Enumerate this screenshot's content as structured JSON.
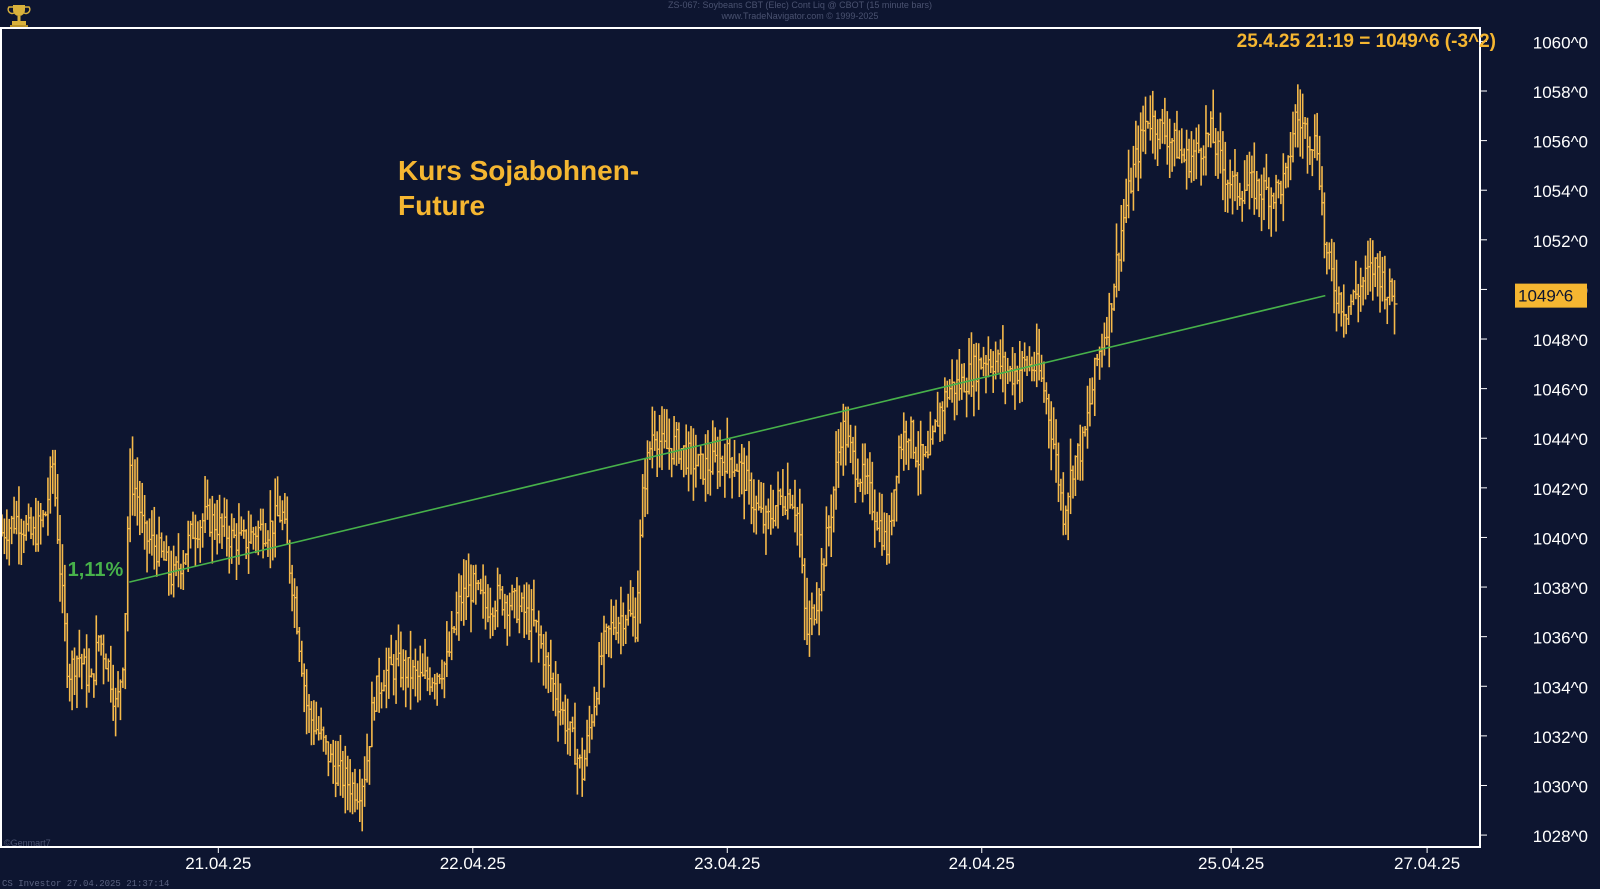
{
  "header": {
    "line1": "ZS-067: Soybeans CBT (Elec) Cont Liq @ CBOT (15 minute bars)",
    "line2": "www.TradeNavigator.com © 1999-2025"
  },
  "watermark": "©Genmart7",
  "footer_left": "CS Investor   27.04.2025 21:37:14",
  "colors": {
    "background": "#0d1530",
    "bars": "#f5b94a",
    "trendline": "#47b14a",
    "axis_text": "#ffffff",
    "annotation": "#f5b631",
    "frame": "#ffffff"
  },
  "chart_data": {
    "type": "ohlc",
    "title": "Kurs Sojabohnen-Future",
    "title_lines": [
      "Kurs Sojabohnen-",
      "Future"
    ],
    "readout": "25.4.25 21:19 = 1049^6 (-3^2)",
    "last_price_label": "1049^6",
    "last_price": 1049.75,
    "trendline": {
      "label": "1,11%",
      "start": {
        "day": 0.0,
        "price": 1038.2
      },
      "end": {
        "day": 4.7,
        "price": 1049.75
      }
    },
    "y_ticks": [
      {
        "value": 1060,
        "label": "1060^0"
      },
      {
        "value": 1058,
        "label": "1058^0"
      },
      {
        "value": 1056,
        "label": "1056^0"
      },
      {
        "value": 1054,
        "label": "1054^0"
      },
      {
        "value": 1052,
        "label": "1052^0"
      },
      {
        "value": 1050,
        "label": "1050^0"
      },
      {
        "value": 1048,
        "label": "1048^0"
      },
      {
        "value": 1046,
        "label": "1046^0"
      },
      {
        "value": 1044,
        "label": "1044^0"
      },
      {
        "value": 1042,
        "label": "1042^0"
      },
      {
        "value": 1040,
        "label": "1040^0"
      },
      {
        "value": 1038,
        "label": "1038^0"
      },
      {
        "value": 1036,
        "label": "1036^0"
      },
      {
        "value": 1034,
        "label": "1034^0"
      },
      {
        "value": 1032,
        "label": "1032^0"
      },
      {
        "value": 1030,
        "label": "1030^0"
      },
      {
        "value": 1028,
        "label": "1028^0"
      }
    ],
    "x_ticks": [
      {
        "day": 0.35,
        "label": "21.04.25"
      },
      {
        "day": 1.35,
        "label": "22.04.25"
      },
      {
        "day": 2.35,
        "label": "23.04.25"
      },
      {
        "day": 3.35,
        "label": "24.04.25"
      },
      {
        "day": 4.33,
        "label": "25.04.25"
      },
      {
        "day": 5.1,
        "label": "27.04.25"
      }
    ],
    "ylim": [
      1027.6,
      1060.5
    ],
    "xlim": [
      -0.5,
      5.3
    ],
    "grid": false,
    "price_path": [
      [
        -0.5,
        1040.2
      ],
      [
        -0.44,
        1040.8
      ],
      [
        -0.38,
        1040.0
      ],
      [
        -0.33,
        1040.9
      ],
      [
        -0.3,
        1043.0
      ],
      [
        -0.27,
        1038.5
      ],
      [
        -0.24,
        1034.5
      ],
      [
        -0.2,
        1035.3
      ],
      [
        -0.15,
        1034.0
      ],
      [
        -0.12,
        1036.0
      ],
      [
        -0.08,
        1034.8
      ],
      [
        -0.05,
        1033.0
      ],
      [
        -0.02,
        1035.6
      ],
      [
        0.0,
        1042.5
      ],
      [
        0.03,
        1041.8
      ],
      [
        0.06,
        1040.0
      ],
      [
        0.1,
        1039.7
      ],
      [
        0.14,
        1039.0
      ],
      [
        0.17,
        1038.3
      ],
      [
        0.21,
        1039.2
      ],
      [
        0.25,
        1040.3
      ],
      [
        0.3,
        1040.8
      ],
      [
        0.35,
        1040.5
      ],
      [
        0.4,
        1040.0
      ],
      [
        0.45,
        1039.8
      ],
      [
        0.5,
        1040.3
      ],
      [
        0.55,
        1040.4
      ],
      [
        0.6,
        1041.0
      ],
      [
        0.65,
        1037.5
      ],
      [
        0.7,
        1033.0
      ],
      [
        0.75,
        1032.0
      ],
      [
        0.8,
        1030.8
      ],
      [
        0.85,
        1030.2
      ],
      [
        0.9,
        1029.8
      ],
      [
        0.93,
        1030.7
      ],
      [
        0.96,
        1033.5
      ],
      [
        1.0,
        1034.5
      ],
      [
        1.05,
        1034.8
      ],
      [
        1.1,
        1034.6
      ],
      [
        1.15,
        1034.2
      ],
      [
        1.2,
        1034.5
      ],
      [
        1.25,
        1035.0
      ],
      [
        1.3,
        1037.5
      ],
      [
        1.35,
        1038.0
      ],
      [
        1.4,
        1037.2
      ],
      [
        1.45,
        1037.6
      ],
      [
        1.5,
        1037.4
      ],
      [
        1.55,
        1037.0
      ],
      [
        1.6,
        1036.3
      ],
      [
        1.65,
        1034.5
      ],
      [
        1.7,
        1033.0
      ],
      [
        1.75,
        1031.5
      ],
      [
        1.78,
        1030.5
      ],
      [
        1.82,
        1033.0
      ],
      [
        1.86,
        1035.5
      ],
      [
        1.9,
        1036.5
      ],
      [
        1.95,
        1037.0
      ],
      [
        1.99,
        1036.5
      ],
      [
        2.02,
        1042.0
      ],
      [
        2.06,
        1044.5
      ],
      [
        2.1,
        1043.5
      ],
      [
        2.15,
        1043.8
      ],
      [
        2.2,
        1043.2
      ],
      [
        2.25,
        1042.8
      ],
      [
        2.3,
        1043.0
      ],
      [
        2.35,
        1043.3
      ],
      [
        2.4,
        1042.8
      ],
      [
        2.45,
        1041.5
      ],
      [
        2.5,
        1040.5
      ],
      [
        2.55,
        1041.5
      ],
      [
        2.6,
        1041.8
      ],
      [
        2.63,
        1040.8
      ],
      [
        2.66,
        1036.0
      ],
      [
        2.7,
        1037.5
      ],
      [
        2.75,
        1040.5
      ],
      [
        2.8,
        1044.5
      ],
      [
        2.85,
        1043.0
      ],
      [
        2.9,
        1042.0
      ],
      [
        2.95,
        1040.5
      ],
      [
        2.98,
        1039.5
      ],
      [
        3.02,
        1043.5
      ],
      [
        3.06,
        1044.5
      ],
      [
        3.1,
        1043.2
      ],
      [
        3.14,
        1043.0
      ],
      [
        3.18,
        1045.0
      ],
      [
        3.22,
        1046.0
      ],
      [
        3.27,
        1046.2
      ],
      [
        3.32,
        1046.8
      ],
      [
        3.37,
        1047.3
      ],
      [
        3.42,
        1047.0
      ],
      [
        3.47,
        1046.6
      ],
      [
        3.52,
        1047.0
      ],
      [
        3.57,
        1046.8
      ],
      [
        3.6,
        1045.8
      ],
      [
        3.63,
        1044.0
      ],
      [
        3.67,
        1041.0
      ],
      [
        3.71,
        1043.0
      ],
      [
        3.75,
        1043.8
      ],
      [
        3.8,
        1047.0
      ],
      [
        3.85,
        1049.0
      ],
      [
        3.9,
        1052.5
      ],
      [
        3.95,
        1055.0
      ],
      [
        4.0,
        1057.0
      ],
      [
        4.05,
        1056.5
      ],
      [
        4.1,
        1056.0
      ],
      [
        4.15,
        1055.2
      ],
      [
        4.2,
        1055.6
      ],
      [
        4.25,
        1056.3
      ],
      [
        4.3,
        1054.8
      ],
      [
        4.35,
        1054.0
      ],
      [
        4.4,
        1054.2
      ],
      [
        4.45,
        1054.0
      ],
      [
        4.5,
        1053.9
      ],
      [
        4.55,
        1054.5
      ],
      [
        4.58,
        1057.0
      ],
      [
        4.63,
        1056.3
      ],
      [
        4.67,
        1055.8
      ],
      [
        4.7,
        1051.5
      ],
      [
        4.74,
        1050.0
      ],
      [
        4.78,
        1049.2
      ],
      [
        4.82,
        1049.8
      ],
      [
        4.86,
        1050.5
      ],
      [
        4.9,
        1051.0
      ],
      [
        4.95,
        1049.8
      ],
      [
        4.98,
        1049.75
      ]
    ]
  }
}
